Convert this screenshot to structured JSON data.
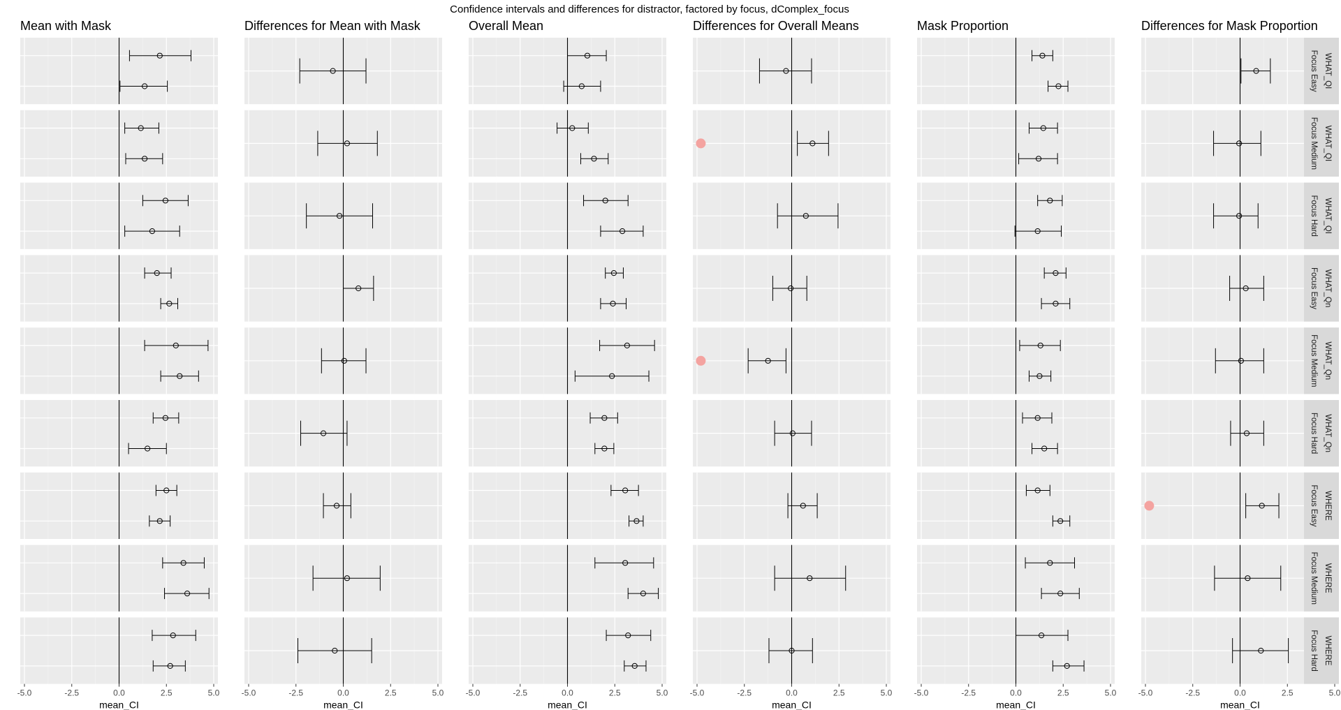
{
  "title": "Confidence intervals and differences for distractor, factored by focus, dComplex_focus",
  "chart_data": {
    "type": "scatter",
    "xlabel": "mean_CI",
    "xlim": [
      -5.0,
      5.0
    ],
    "xticks": [
      "-5.0",
      "-2.5",
      "0.0",
      "2.5",
      "5.0"
    ],
    "grid": true,
    "rows": [
      {
        "group": "WHAT_QI",
        "focus": "Focus Easy"
      },
      {
        "group": "WHAT_QI",
        "focus": "Focus Medium"
      },
      {
        "group": "WHAT_QI",
        "focus": "Focus Hard"
      },
      {
        "group": "WHAT_Qn",
        "focus": "Focus Easy"
      },
      {
        "group": "WHAT_Qn",
        "focus": "Focus Medium"
      },
      {
        "group": "WHAT_Qn",
        "focus": "Focus Hard"
      },
      {
        "group": "WHERE",
        "focus": "Focus Easy"
      },
      {
        "group": "WHERE",
        "focus": "Focus Medium"
      },
      {
        "group": "WHERE",
        "focus": "Focus Hard"
      }
    ],
    "panels": [
      {
        "title": "Mean with Mask",
        "kind": "pair",
        "data": [
          [
            [
              0.55,
              2.15,
              3.8
            ],
            [
              0.05,
              1.35,
              2.55
            ]
          ],
          [
            [
              0.3,
              1.15,
              2.1
            ],
            [
              0.35,
              1.35,
              2.3
            ]
          ],
          [
            [
              1.25,
              2.45,
              3.65
            ],
            [
              0.3,
              1.75,
              3.2
            ]
          ],
          [
            [
              1.35,
              2.0,
              2.75
            ],
            [
              2.2,
              2.65,
              3.1
            ]
          ],
          [
            [
              1.35,
              3.0,
              4.7
            ],
            [
              2.2,
              3.2,
              4.2
            ]
          ],
          [
            [
              1.8,
              2.45,
              3.15
            ],
            [
              0.5,
              1.5,
              2.5
            ]
          ],
          [
            [
              1.95,
              2.5,
              3.05
            ],
            [
              1.6,
              2.15,
              2.7
            ]
          ],
          [
            [
              2.3,
              3.4,
              4.5
            ],
            [
              2.4,
              3.6,
              4.75
            ]
          ],
          [
            [
              1.75,
              2.85,
              4.05
            ],
            [
              1.8,
              2.7,
              3.5
            ]
          ]
        ],
        "markers": []
      },
      {
        "title": "Differences for Mean with Mask",
        "kind": "single",
        "data": [
          [
            -2.3,
            -0.55,
            1.2
          ],
          [
            -1.35,
            0.2,
            1.8
          ],
          [
            -1.95,
            -0.2,
            1.55
          ],
          [
            0.0,
            0.8,
            1.6
          ],
          [
            -1.15,
            0.05,
            1.2
          ],
          [
            -2.25,
            -1.05,
            0.2
          ],
          [
            -1.05,
            -0.35,
            0.4
          ],
          [
            -1.6,
            0.2,
            1.95
          ],
          [
            -2.4,
            -0.45,
            1.5
          ]
        ],
        "markers": []
      },
      {
        "title": "Overall Mean",
        "kind": "pair",
        "data": [
          [
            [
              0.0,
              1.05,
              2.05
            ],
            [
              -0.2,
              0.75,
              1.75
            ]
          ],
          [
            [
              -0.55,
              0.25,
              1.1
            ],
            [
              0.7,
              1.4,
              2.15
            ]
          ],
          [
            [
              0.85,
              2.0,
              3.2
            ],
            [
              1.75,
              2.9,
              4.0
            ]
          ],
          [
            [
              2.0,
              2.45,
              2.95
            ],
            [
              1.75,
              2.4,
              3.1
            ]
          ],
          [
            [
              1.7,
              3.15,
              4.6
            ],
            [
              0.4,
              2.35,
              4.3
            ]
          ],
          [
            [
              1.2,
              1.95,
              2.65
            ],
            [
              1.45,
              1.95,
              2.45
            ]
          ],
          [
            [
              2.3,
              3.05,
              3.75
            ],
            [
              3.25,
              3.65,
              4.0
            ]
          ],
          [
            [
              1.45,
              3.05,
              4.55
            ],
            [
              3.2,
              4.0,
              4.8
            ]
          ],
          [
            [
              2.05,
              3.2,
              4.4
            ],
            [
              3.0,
              3.55,
              4.15
            ]
          ]
        ],
        "markers": []
      },
      {
        "title": "Differences for Overall Means",
        "kind": "single",
        "data": [
          [
            -1.7,
            -0.3,
            1.05
          ],
          [
            0.3,
            1.1,
            1.95
          ],
          [
            -0.75,
            0.75,
            2.45
          ],
          [
            -1.0,
            -0.05,
            0.8
          ],
          [
            -2.3,
            -1.25,
            -0.3
          ],
          [
            -0.9,
            0.05,
            1.05
          ],
          [
            -0.2,
            0.6,
            1.35
          ],
          [
            -0.9,
            0.95,
            2.85
          ],
          [
            -1.2,
            0.0,
            1.1
          ]
        ],
        "markers": [
          {
            "row": 1,
            "x": -4.8
          },
          {
            "row": 4,
            "x": -4.8
          }
        ]
      },
      {
        "title": "Mask Proportion",
        "kind": "pair",
        "data": [
          [
            [
              0.85,
              1.4,
              1.95
            ],
            [
              1.7,
              2.25,
              2.75
            ]
          ],
          [
            [
              0.7,
              1.45,
              2.2
            ],
            [
              0.15,
              1.2,
              2.2
            ]
          ],
          [
            [
              1.15,
              1.8,
              2.45
            ],
            [
              -0.05,
              1.15,
              2.4
            ]
          ],
          [
            [
              1.5,
              2.1,
              2.65
            ],
            [
              1.35,
              2.1,
              2.85
            ]
          ],
          [
            [
              0.2,
              1.3,
              2.35
            ],
            [
              0.7,
              1.25,
              1.85
            ]
          ],
          [
            [
              0.35,
              1.15,
              1.9
            ],
            [
              0.85,
              1.5,
              2.2
            ]
          ],
          [
            [
              0.55,
              1.15,
              1.8
            ],
            [
              1.95,
              2.35,
              2.85
            ]
          ],
          [
            [
              0.5,
              1.8,
              3.1
            ],
            [
              1.35,
              2.35,
              3.35
            ]
          ],
          [
            [
              0.0,
              1.35,
              2.75
            ],
            [
              1.95,
              2.7,
              3.6
            ]
          ]
        ],
        "markers": []
      },
      {
        "title": "Differences for Mask Proportion",
        "kind": "single",
        "data": [
          [
            0.05,
            0.85,
            1.6
          ],
          [
            -1.4,
            -0.05,
            1.1
          ],
          [
            -1.4,
            -0.05,
            0.95
          ],
          [
            -0.55,
            0.3,
            1.25
          ],
          [
            -1.3,
            0.05,
            1.25
          ],
          [
            -0.5,
            0.35,
            1.25
          ],
          [
            0.3,
            1.15,
            2.05
          ],
          [
            -1.35,
            0.4,
            2.15
          ],
          [
            -0.4,
            1.1,
            2.55
          ]
        ],
        "markers": [
          {
            "row": 6,
            "x": -4.8
          }
        ]
      }
    ]
  }
}
